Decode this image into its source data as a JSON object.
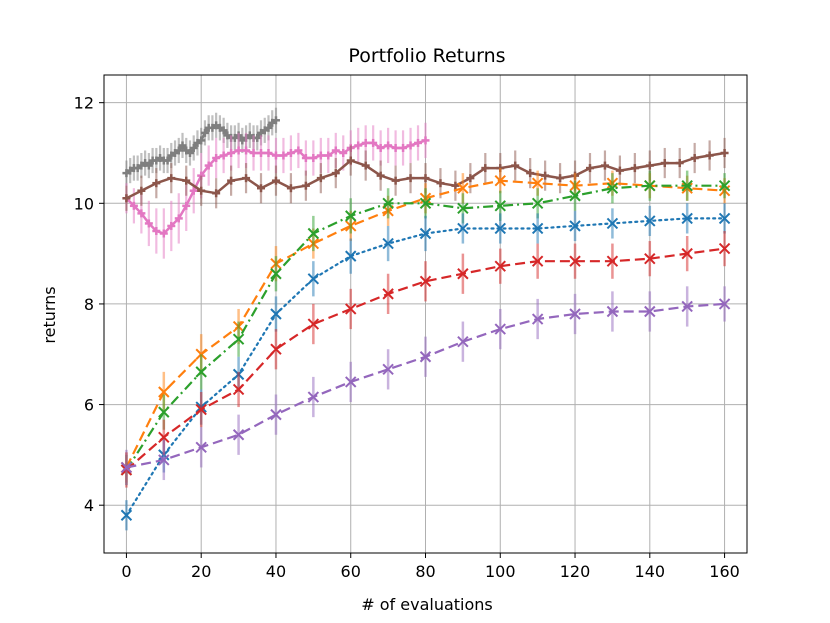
{
  "chart_data": {
    "type": "line",
    "title": "Portfolio Returns",
    "xlabel": "# of evaluations",
    "ylabel": "returns",
    "xlim": [
      -6,
      166
    ],
    "ylim": [
      3.05,
      12.55
    ],
    "x_ticks": [
      0,
      20,
      40,
      60,
      80,
      100,
      120,
      140,
      160
    ],
    "y_ticks": [
      4,
      6,
      8,
      10,
      12
    ],
    "grid": true,
    "legend": "none",
    "series": [
      {
        "color": "#7f7f7f",
        "style": "solid",
        "marker": "plus",
        "dense": true,
        "x": [
          0,
          1,
          2,
          3,
          4,
          5,
          6,
          7,
          8,
          9,
          10,
          11,
          12,
          13,
          14,
          15,
          16,
          17,
          18,
          19,
          20,
          21,
          22,
          23,
          24,
          25,
          26,
          27,
          28,
          29,
          30,
          31,
          32,
          33,
          34,
          35,
          36,
          37,
          38,
          39,
          40
        ],
        "y": [
          10.6,
          10.65,
          10.7,
          10.7,
          10.75,
          10.8,
          10.75,
          10.85,
          10.85,
          10.9,
          10.85,
          10.85,
          10.95,
          11.0,
          11.05,
          11.15,
          11.05,
          11.0,
          11.1,
          11.2,
          11.25,
          11.4,
          11.5,
          11.5,
          11.55,
          11.5,
          11.45,
          11.35,
          11.3,
          11.3,
          11.35,
          11.25,
          11.3,
          11.35,
          11.3,
          11.3,
          11.4,
          11.45,
          11.5,
          11.6,
          11.65
        ],
        "err": [
          0.25,
          0.25,
          0.25,
          0.25,
          0.25,
          0.25,
          0.25,
          0.25,
          0.25,
          0.25,
          0.25,
          0.25,
          0.25,
          0.25,
          0.25,
          0.25,
          0.25,
          0.25,
          0.25,
          0.25,
          0.25,
          0.25,
          0.25,
          0.25,
          0.25,
          0.25,
          0.25,
          0.25,
          0.25,
          0.25,
          0.25,
          0.25,
          0.25,
          0.25,
          0.25,
          0.25,
          0.25,
          0.25,
          0.25,
          0.25,
          0.25
        ]
      },
      {
        "color": "#e377c2",
        "style": "solid",
        "marker": "plus",
        "dense": true,
        "x": [
          0,
          2,
          4,
          6,
          8,
          10,
          12,
          14,
          16,
          18,
          20,
          22,
          24,
          26,
          28,
          30,
          32,
          34,
          36,
          38,
          40,
          42,
          44,
          46,
          48,
          50,
          52,
          54,
          56,
          58,
          60,
          62,
          64,
          66,
          68,
          70,
          72,
          74,
          76,
          78,
          80
        ],
        "y": [
          10.1,
          9.95,
          9.8,
          9.6,
          9.45,
          9.4,
          9.55,
          9.7,
          9.95,
          10.25,
          10.55,
          10.75,
          10.9,
          10.95,
          11.0,
          11.05,
          11.05,
          11.0,
          11.0,
          11.0,
          10.95,
          10.95,
          11.0,
          11.05,
          10.9,
          10.9,
          10.95,
          10.95,
          11.05,
          11.0,
          11.1,
          11.15,
          11.2,
          11.2,
          11.1,
          11.15,
          11.1,
          11.1,
          11.15,
          11.2,
          11.25
        ],
        "err": [
          0.3,
          0.35,
          0.4,
          0.45,
          0.45,
          0.5,
          0.5,
          0.5,
          0.5,
          0.45,
          0.45,
          0.4,
          0.4,
          0.35,
          0.35,
          0.35,
          0.35,
          0.35,
          0.35,
          0.35,
          0.35,
          0.35,
          0.35,
          0.35,
          0.35,
          0.35,
          0.35,
          0.35,
          0.35,
          0.35,
          0.35,
          0.35,
          0.35,
          0.35,
          0.35,
          0.35,
          0.35,
          0.35,
          0.35,
          0.35,
          0.35
        ]
      },
      {
        "color": "#8c564b",
        "style": "solid",
        "marker": "plus",
        "dense": true,
        "x": [
          0,
          4,
          8,
          12,
          16,
          20,
          24,
          28,
          32,
          36,
          40,
          44,
          48,
          52,
          56,
          60,
          64,
          68,
          72,
          76,
          80,
          84,
          88,
          92,
          96,
          100,
          104,
          108,
          112,
          116,
          120,
          124,
          128,
          132,
          136,
          140,
          144,
          148,
          152,
          156,
          160
        ],
        "y": [
          10.1,
          10.25,
          10.4,
          10.5,
          10.45,
          10.25,
          10.2,
          10.45,
          10.5,
          10.3,
          10.45,
          10.3,
          10.35,
          10.5,
          10.6,
          10.85,
          10.75,
          10.55,
          10.45,
          10.5,
          10.5,
          10.4,
          10.35,
          10.5,
          10.7,
          10.7,
          10.75,
          10.6,
          10.55,
          10.5,
          10.55,
          10.7,
          10.75,
          10.65,
          10.7,
          10.75,
          10.8,
          10.8,
          10.9,
          10.95,
          11.0
        ],
        "err": [
          0.25,
          0.3,
          0.3,
          0.3,
          0.3,
          0.3,
          0.3,
          0.3,
          0.3,
          0.3,
          0.3,
          0.3,
          0.3,
          0.3,
          0.3,
          0.3,
          0.3,
          0.3,
          0.3,
          0.3,
          0.3,
          0.3,
          0.3,
          0.3,
          0.3,
          0.3,
          0.3,
          0.3,
          0.3,
          0.3,
          0.3,
          0.3,
          0.3,
          0.3,
          0.3,
          0.3,
          0.3,
          0.3,
          0.3,
          0.3,
          0.3
        ]
      },
      {
        "color": "#ff7f0e",
        "style": "dashed",
        "marker": "x",
        "x": [
          0,
          10,
          20,
          30,
          40,
          50,
          60,
          70,
          80,
          90,
          100,
          110,
          120,
          130,
          140,
          150,
          160
        ],
        "y": [
          4.75,
          6.25,
          7.0,
          7.55,
          8.8,
          9.2,
          9.55,
          9.85,
          10.1,
          10.3,
          10.45,
          10.4,
          10.35,
          10.4,
          10.35,
          10.3,
          10.25
        ],
        "err": [
          0.3,
          0.4,
          0.4,
          0.35,
          0.35,
          0.3,
          0.3,
          0.3,
          0.3,
          0.3,
          0.25,
          0.25,
          0.25,
          0.25,
          0.25,
          0.25,
          0.25
        ]
      },
      {
        "color": "#2ca02c",
        "style": "dashdot",
        "marker": "x",
        "x": [
          0,
          10,
          20,
          30,
          40,
          50,
          60,
          70,
          80,
          90,
          100,
          110,
          120,
          130,
          140,
          150,
          160
        ],
        "y": [
          4.7,
          5.85,
          6.65,
          7.3,
          8.6,
          9.4,
          9.75,
          10.0,
          10.0,
          9.9,
          9.95,
          10.0,
          10.15,
          10.3,
          10.35,
          10.35,
          10.35
        ],
        "err": [
          0.3,
          0.35,
          0.35,
          0.35,
          0.35,
          0.35,
          0.35,
          0.3,
          0.3,
          0.3,
          0.3,
          0.3,
          0.3,
          0.3,
          0.3,
          0.3,
          0.25
        ]
      },
      {
        "color": "#1f77b4",
        "style": "dotted",
        "marker": "x",
        "x": [
          0,
          10,
          20,
          30,
          40,
          50,
          60,
          70,
          80,
          90,
          100,
          110,
          120,
          130,
          140,
          150,
          160
        ],
        "y": [
          3.8,
          5.0,
          5.95,
          6.6,
          7.8,
          8.5,
          8.95,
          9.2,
          9.4,
          9.5,
          9.5,
          9.5,
          9.55,
          9.6,
          9.65,
          9.7,
          9.7
        ],
        "err": [
          0.3,
          0.35,
          0.35,
          0.35,
          0.35,
          0.35,
          0.35,
          0.35,
          0.35,
          0.3,
          0.3,
          0.3,
          0.3,
          0.3,
          0.3,
          0.3,
          0.3
        ]
      },
      {
        "color": "#d62728",
        "style": "dashed",
        "marker": "x",
        "x": [
          0,
          10,
          20,
          30,
          40,
          50,
          60,
          70,
          80,
          90,
          100,
          110,
          120,
          130,
          140,
          150,
          160
        ],
        "y": [
          4.7,
          5.35,
          5.9,
          6.3,
          7.1,
          7.6,
          7.9,
          8.2,
          8.45,
          8.6,
          8.75,
          8.85,
          8.85,
          8.85,
          8.9,
          9.0,
          9.1
        ],
        "err": [
          0.35,
          0.35,
          0.35,
          0.35,
          0.4,
          0.4,
          0.4,
          0.4,
          0.4,
          0.4,
          0.35,
          0.35,
          0.35,
          0.35,
          0.35,
          0.35,
          0.35
        ]
      },
      {
        "color": "#9467bd",
        "style": "dashed",
        "marker": "x",
        "x": [
          0,
          10,
          20,
          30,
          40,
          50,
          60,
          70,
          80,
          90,
          100,
          110,
          120,
          130,
          140,
          150,
          160
        ],
        "y": [
          4.75,
          4.9,
          5.15,
          5.4,
          5.8,
          6.15,
          6.45,
          6.7,
          6.95,
          7.25,
          7.5,
          7.7,
          7.8,
          7.85,
          7.85,
          7.95,
          8.0
        ],
        "err": [
          0.35,
          0.4,
          0.4,
          0.4,
          0.4,
          0.4,
          0.4,
          0.4,
          0.4,
          0.4,
          0.4,
          0.4,
          0.4,
          0.4,
          0.4,
          0.4,
          0.35
        ]
      }
    ]
  }
}
